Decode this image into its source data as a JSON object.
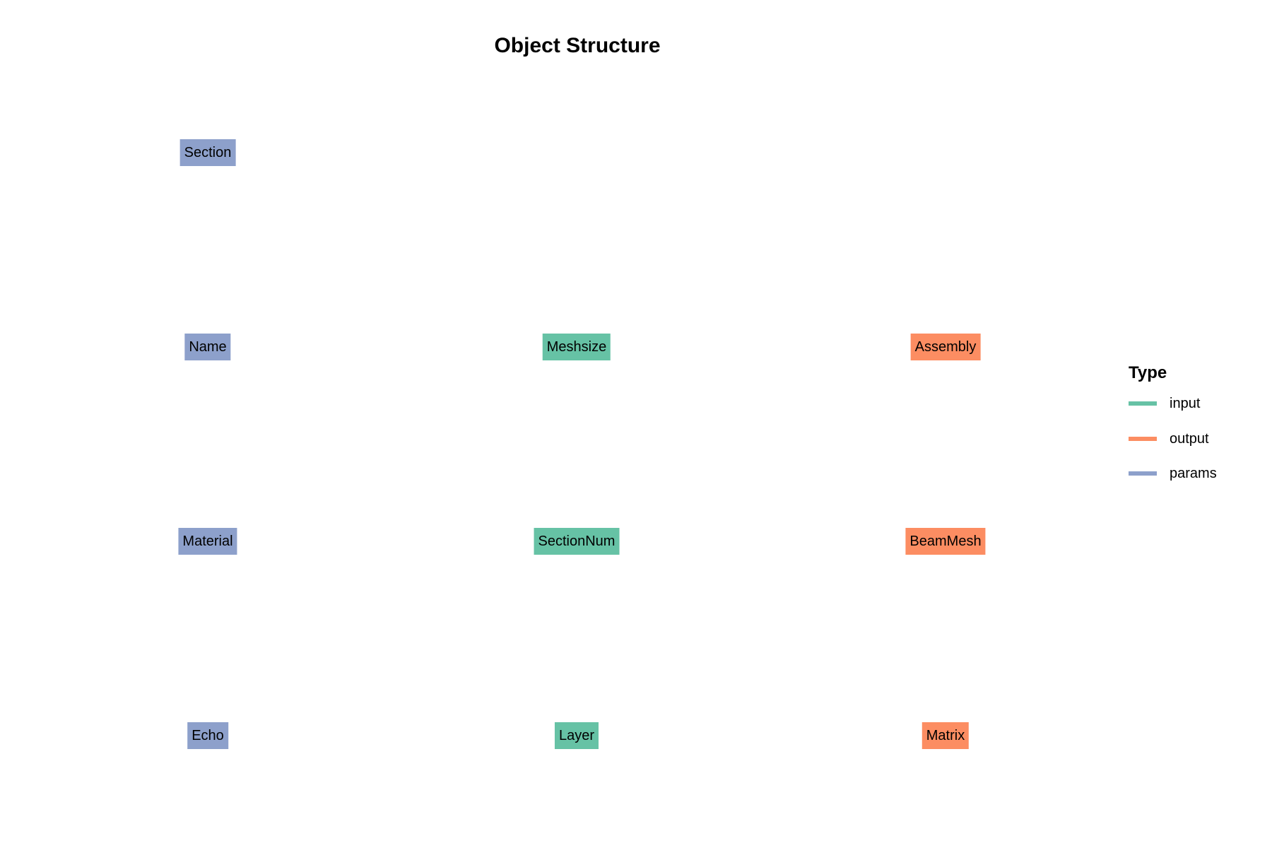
{
  "diagram": {
    "title": "Object Structure",
    "colors": {
      "input": "#66c2a5",
      "output": "#fc8d62",
      "params": "#8da0cb"
    },
    "nodes": [
      {
        "label": "Section",
        "type": "params"
      },
      {
        "label": "Name",
        "type": "params"
      },
      {
        "label": "Meshsize",
        "type": "input"
      },
      {
        "label": "Assembly",
        "type": "output"
      },
      {
        "label": "Material",
        "type": "params"
      },
      {
        "label": "SectionNum",
        "type": "input"
      },
      {
        "label": "BeamMesh",
        "type": "output"
      },
      {
        "label": "Echo",
        "type": "params"
      },
      {
        "label": "Layer",
        "type": "input"
      },
      {
        "label": "Matrix",
        "type": "output"
      }
    ],
    "legend": {
      "title": "Type",
      "items": [
        {
          "label": "input",
          "type": "input"
        },
        {
          "label": "output",
          "type": "output"
        },
        {
          "label": "params",
          "type": "params"
        }
      ]
    }
  }
}
